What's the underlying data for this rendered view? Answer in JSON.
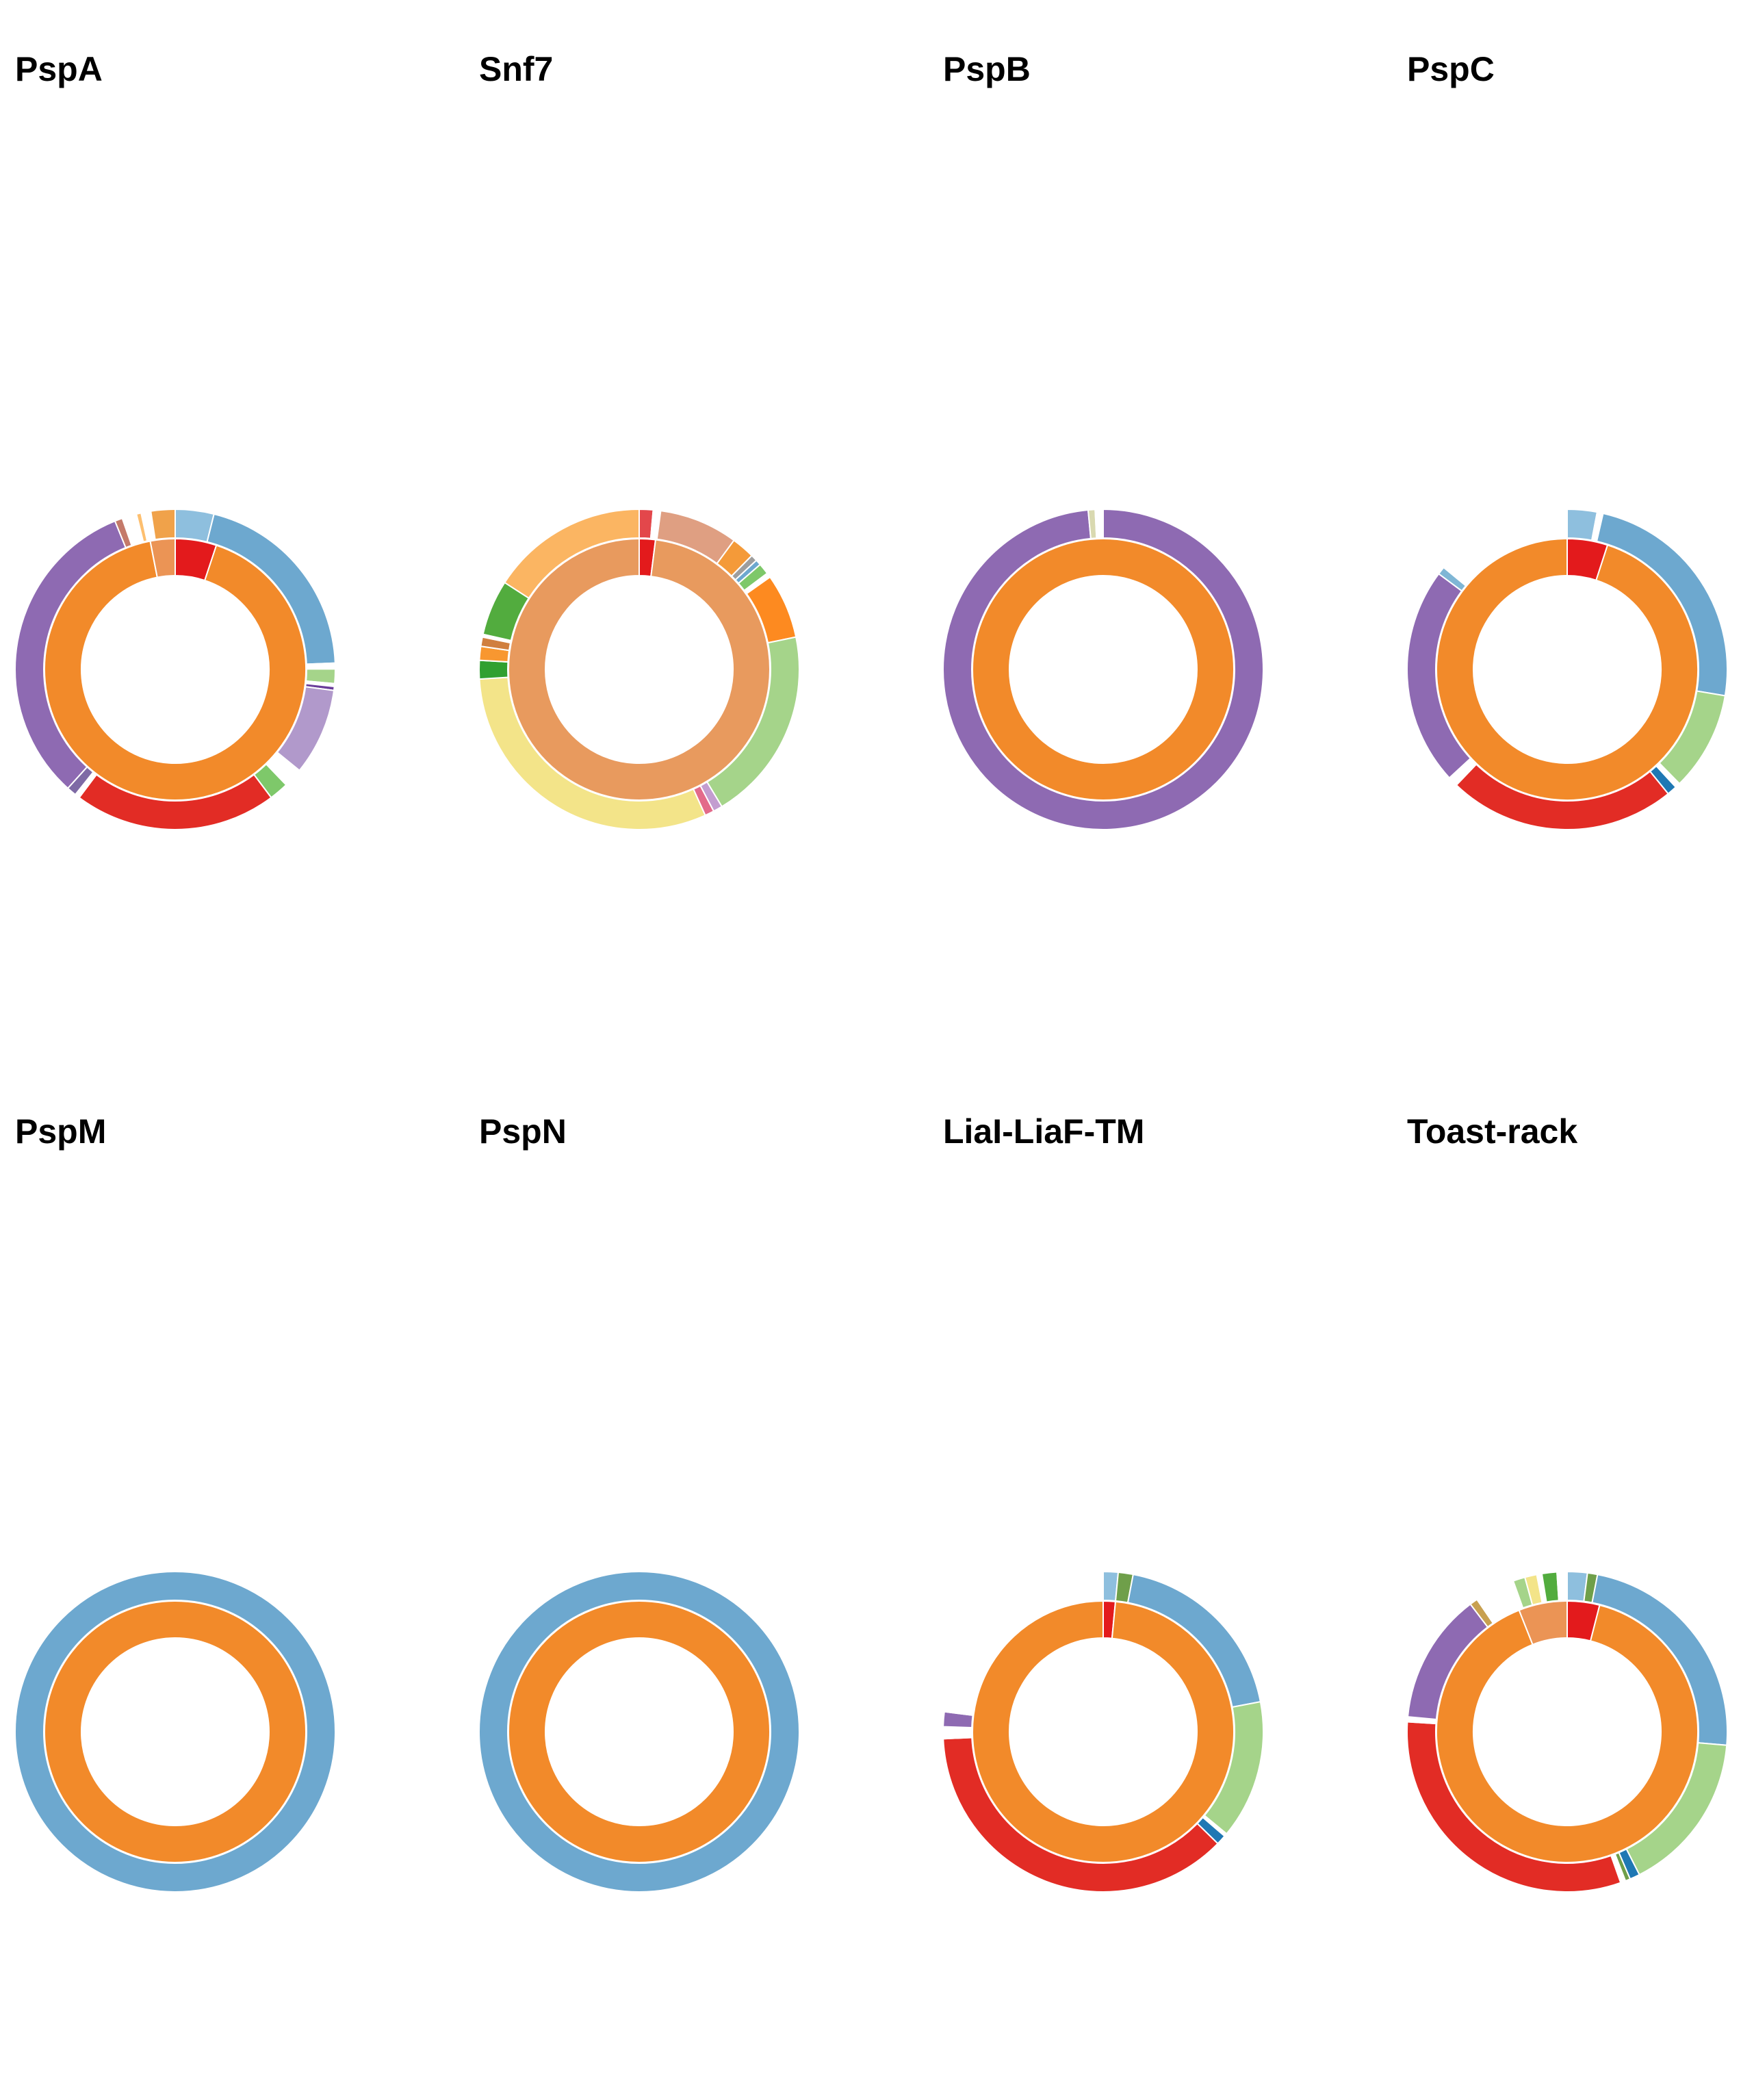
{
  "figure": {
    "layout": "2 rows x 4 columns of sunburst (two-ring) donut charts"
  },
  "chart_data": [
    {
      "type": "sunburst",
      "title": "PspA",
      "inner_ring": [
        {
          "color": "#e31a1c",
          "value": 5
        },
        {
          "color": "#f28a2a",
          "value": 90
        },
        {
          "color": "#eb9455",
          "value": 3
        }
      ],
      "outer_ring": [
        {
          "color": "#8ebfde",
          "value": 4
        },
        {
          "color": "#6da8cf",
          "value": 21
        },
        {
          "color": "#ffffff",
          "value": 0.6
        },
        {
          "color": "#a5d48a",
          "value": 1.5
        },
        {
          "color": "#ffffff",
          "value": 0.3
        },
        {
          "color": "#6a3d9a",
          "value": 0.4
        },
        {
          "color": "#b199cb",
          "value": 9
        },
        {
          "color": "#ffffff",
          "value": 2
        },
        {
          "color": "#7ec86a",
          "value": 2
        },
        {
          "color": "#e22c25",
          "value": 21
        },
        {
          "color": "#ffffff",
          "value": 0.5
        },
        {
          "color": "#7e6aa5",
          "value": 1
        },
        {
          "color": "#8e6ab2",
          "value": 33
        },
        {
          "color": "#c47a6a",
          "value": 0.8
        },
        {
          "color": "#ffffff",
          "value": 1.5
        },
        {
          "color": "#fdbf6f",
          "value": 0.5
        },
        {
          "color": "#ffffff",
          "value": 1
        },
        {
          "color": "#f0a24a",
          "value": 2.5
        }
      ]
    },
    {
      "type": "sunburst",
      "title": "Snf7",
      "inner_ring": [
        {
          "color": "#e31a1c",
          "value": 2
        },
        {
          "color": "#e89a5e",
          "value": 98
        }
      ],
      "outer_ring": [
        {
          "color": "#e3474b",
          "value": 1.5
        },
        {
          "color": "#ffffff",
          "value": 0.8
        },
        {
          "color": "#df9f82",
          "value": 8.5
        },
        {
          "color": "#f49a39",
          "value": 2.5
        },
        {
          "color": "#9e9e9e",
          "value": 0.7
        },
        {
          "color": "#6da8cf",
          "value": 0.6
        },
        {
          "color": "#7ec86a",
          "value": 1.2
        },
        {
          "color": "#ffffff",
          "value": 0.5
        },
        {
          "color": "#fd8a20",
          "value": 7
        },
        {
          "color": "#a5d48a",
          "value": 21
        },
        {
          "color": "#c39dd0",
          "value": 1
        },
        {
          "color": "#e36a8a",
          "value": 1
        },
        {
          "color": "#f3e489",
          "value": 33
        },
        {
          "color": "#31a030",
          "value": 2
        },
        {
          "color": "#f89730",
          "value": 1.5
        },
        {
          "color": "#d07f3f",
          "value": 1
        },
        {
          "color": "#ffffff",
          "value": 0.3
        },
        {
          "color": "#52ac3e",
          "value": 6
        },
        {
          "color": "#fbb562",
          "value": 17
        }
      ]
    },
    {
      "type": "sunburst",
      "title": "PspB",
      "inner_ring": [
        {
          "color": "#f28a2a",
          "value": 100
        }
      ],
      "outer_ring": [
        {
          "color": "#8e6ab2",
          "value": 98.5
        },
        {
          "color": "#d9d9b0",
          "value": 0.7
        },
        {
          "color": "#ffffff",
          "value": 0.8
        }
      ]
    },
    {
      "type": "sunburst",
      "title": "PspC",
      "inner_ring": [
        {
          "color": "#e31a1c",
          "value": 5
        },
        {
          "color": "#f28a2a",
          "value": 95
        }
      ],
      "outer_ring": [
        {
          "color": "#8ebfde",
          "value": 3
        },
        {
          "color": "#ffffff",
          "value": 0.6
        },
        {
          "color": "#6da8cf",
          "value": 24
        },
        {
          "color": "#a5d48a",
          "value": 10
        },
        {
          "color": "#ffffff",
          "value": 0.5
        },
        {
          "color": "#1f78b4",
          "value": 1
        },
        {
          "color": "#e22c25",
          "value": 23
        },
        {
          "color": "#ffffff",
          "value": 1
        },
        {
          "color": "#8e6ab2",
          "value": 22
        },
        {
          "color": "#7fb6d5",
          "value": 0.8
        },
        {
          "color": "#ffffff",
          "value": 14
        }
      ]
    },
    {
      "type": "sunburst",
      "title": "PspM",
      "inner_ring": [
        {
          "color": "#f28a2a",
          "value": 100
        }
      ],
      "outer_ring": [
        {
          "color": "#6da8cf",
          "value": 100
        }
      ]
    },
    {
      "type": "sunburst",
      "title": "PspN",
      "inner_ring": [
        {
          "color": "#f28a2a",
          "value": 100
        }
      ],
      "outer_ring": [
        {
          "color": "#6da8cf",
          "value": 100
        }
      ]
    },
    {
      "type": "sunburst",
      "title": "LiaI-LiaF-TM",
      "inner_ring": [
        {
          "color": "#e31a1c",
          "value": 1.5
        },
        {
          "color": "#f28a2a",
          "value": 98.5
        }
      ],
      "outer_ring": [
        {
          "color": "#8ebfde",
          "value": 1.5
        },
        {
          "color": "#6f9f4a",
          "value": 1.5
        },
        {
          "color": "#6da8cf",
          "value": 19
        },
        {
          "color": "#a5d48a",
          "value": 14
        },
        {
          "color": "#ffffff",
          "value": 0.3
        },
        {
          "color": "#1f78b4",
          "value": 1
        },
        {
          "color": "#e22c25",
          "value": 37
        },
        {
          "color": "#ffffff",
          "value": 1.2
        },
        {
          "color": "#8e6ab2",
          "value": 1.5
        },
        {
          "color": "#ffffff",
          "value": 23
        }
      ]
    },
    {
      "type": "sunburst",
      "title": "Toast-rack",
      "inner_ring": [
        {
          "color": "#e31a1c",
          "value": 4
        },
        {
          "color": "#f28a2a",
          "value": 90
        },
        {
          "color": "#eb9455",
          "value": 6
        }
      ],
      "outer_ring": [
        {
          "color": "#8ebfde",
          "value": 2
        },
        {
          "color": "#6f9f4a",
          "value": 1
        },
        {
          "color": "#6da8cf",
          "value": 23
        },
        {
          "color": "#a5d48a",
          "value": 16
        },
        {
          "color": "#1f78b4",
          "value": 1
        },
        {
          "color": "#6f9f4a",
          "value": 0.5
        },
        {
          "color": "#ffffff",
          "value": 0.5
        },
        {
          "color": "#e22c25",
          "value": 31
        },
        {
          "color": "#ffffff",
          "value": 0.5
        },
        {
          "color": "#8e6ab2",
          "value": 13
        },
        {
          "color": "#c8a050",
          "value": 0.8
        },
        {
          "color": "#ffffff",
          "value": 4
        },
        {
          "color": "#a5d48a",
          "value": 1.2
        },
        {
          "color": "#f3e489",
          "value": 1.2
        },
        {
          "color": "#ffffff",
          "value": 0.5
        },
        {
          "color": "#52ac3e",
          "value": 1.5
        },
        {
          "color": "#ffffff",
          "value": 1
        }
      ]
    }
  ]
}
